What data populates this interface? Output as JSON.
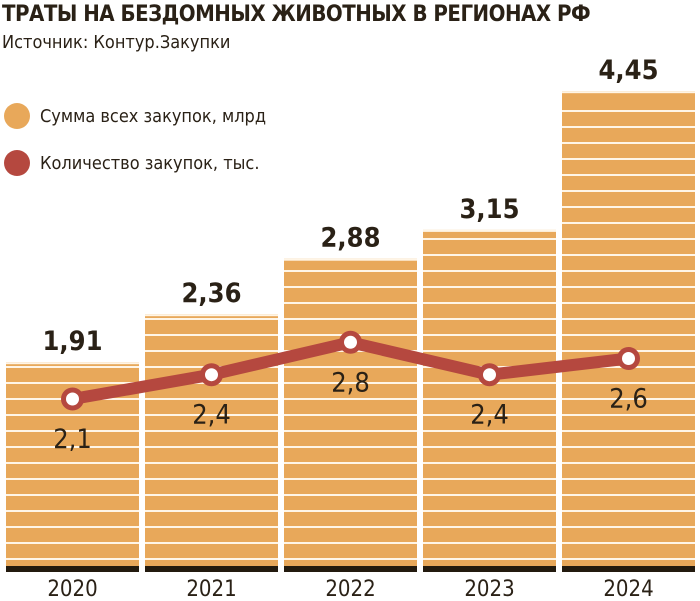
{
  "chart_data": {
    "type": "bar",
    "title": "ТРАТЫ НА БЕЗДОМНЫХ ЖИВОТНЫХ В РЕГИОНАХ РФ",
    "subtitle": "Источник: Контур.Закупки",
    "categories": [
      "2020",
      "2021",
      "2022",
      "2023",
      "2024"
    ],
    "series": [
      {
        "name": "Сумма всех закупок, млрд",
        "type": "bar",
        "values": [
          1.91,
          2.36,
          2.88,
          3.15,
          4.45
        ],
        "labels": [
          "1,91",
          "2,36",
          "2,88",
          "3,15",
          "4,45"
        ],
        "color": "#E8A85A"
      },
      {
        "name": "Количество закупок, тыс.",
        "type": "line",
        "values": [
          2.1,
          2.4,
          2.8,
          2.4,
          2.6
        ],
        "labels": [
          "2,1",
          "2,4",
          "2,8",
          "2,4",
          "2,6"
        ],
        "color": "#B5483F"
      }
    ],
    "legend_position": "top-left",
    "grid": false
  }
}
